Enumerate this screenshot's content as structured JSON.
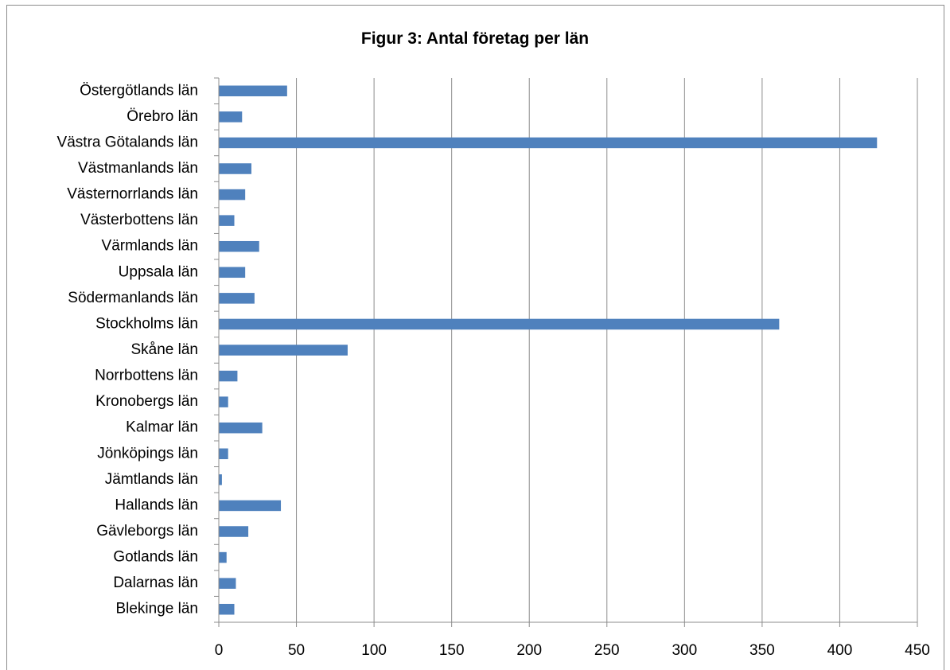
{
  "chart_data": {
    "type": "bar",
    "orientation": "horizontal",
    "title": "Figur 3: Antal företag per län",
    "xlabel": "",
    "ylabel": "",
    "xlim": [
      0,
      450
    ],
    "x_ticks": [
      0,
      50,
      100,
      150,
      200,
      250,
      300,
      350,
      400,
      450
    ],
    "grid": "vertical major gridlines",
    "legend": "none",
    "bar_color": "#4f81bd",
    "categories": [
      "Blekinge län",
      "Dalarnas län",
      "Gotlands län",
      "Gävleborgs län",
      "Hallands län",
      "Jämtlands län",
      "Jönköpings län",
      "Kalmar län",
      "Kronobergs län",
      "Norrbottens län",
      "Skåne län",
      "Stockholms län",
      "Södermanlands län",
      "Uppsala län",
      "Värmlands län",
      "Västerbottens län",
      "Västernorrlands län",
      "Västmanlands län",
      "Västra Götalands län",
      "Örebro län",
      "Östergötlands län"
    ],
    "values": [
      10,
      11,
      5,
      19,
      40,
      2,
      6,
      28,
      6,
      12,
      83,
      361,
      23,
      17,
      26,
      10,
      17,
      21,
      424,
      15,
      44
    ]
  }
}
